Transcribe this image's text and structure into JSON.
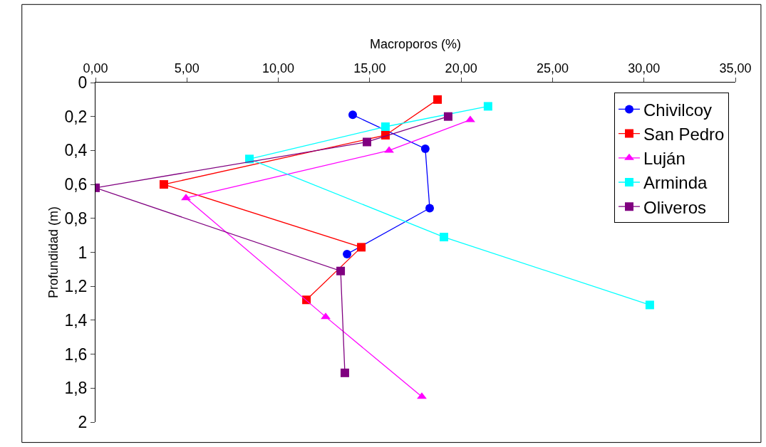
{
  "chart_data": {
    "type": "line",
    "xlabel": "Macroporos (%)",
    "ylabel": "Profundidad (m)",
    "xlim": [
      0,
      35
    ],
    "ylim": [
      2,
      0
    ],
    "xticks": [
      {
        "value": 0,
        "label": "0,00"
      },
      {
        "value": 5,
        "label": "5,00"
      },
      {
        "value": 10,
        "label": "10,00"
      },
      {
        "value": 15,
        "label": "15,00"
      },
      {
        "value": 20,
        "label": "20,00"
      },
      {
        "value": 25,
        "label": "25,00"
      },
      {
        "value": 30,
        "label": "30,00"
      },
      {
        "value": 35,
        "label": "35,00"
      }
    ],
    "yticks": [
      0,
      {
        "value": 0.2,
        "label": "0,2"
      },
      {
        "value": 0.4,
        "label": "0,4"
      },
      {
        "value": 0.6,
        "label": "0,6"
      },
      {
        "value": 0.8,
        "label": "0,8"
      },
      1,
      {
        "value": 1.2,
        "label": "1,2"
      },
      {
        "value": 1.4,
        "label": "1,4"
      },
      {
        "value": 1.6,
        "label": "1,6"
      },
      {
        "value": 1.8,
        "label": "1,8"
      },
      2
    ],
    "grid": false,
    "legend": "top right",
    "line_style": "solid",
    "series": [
      {
        "name": "Chivilcoy",
        "color": "#0000ff",
        "marker": "circle",
        "x": [
          14.07,
          18.04,
          18.28,
          13.76
        ],
        "values": [
          0.19,
          0.39,
          0.74,
          1.01
        ]
      },
      {
        "name": "San Pedro",
        "color": "#ff0000",
        "marker": "square",
        "x": [
          18.71,
          15.86,
          3.74,
          14.54,
          11.54
        ],
        "values": [
          0.1,
          0.31,
          0.6,
          0.97,
          1.28
        ]
      },
      {
        "name": "Luján",
        "color": "#ff00ff",
        "marker": "triangle",
        "x": [
          20.5,
          16.06,
          4.95,
          12.59,
          17.85
        ],
        "values": [
          0.22,
          0.4,
          0.68,
          1.38,
          1.85
        ]
      },
      {
        "name": "Arminda",
        "color": "#00ffff",
        "marker": "square",
        "x": [
          21.47,
          15.86,
          8.42,
          19.06,
          30.32
        ],
        "values": [
          0.14,
          0.26,
          0.45,
          0.91,
          1.31
        ]
      },
      {
        "name": "Oliveros",
        "color": "#800080",
        "marker": "square",
        "x": [
          19.29,
          14.85,
          0.0,
          13.41,
          13.64
        ],
        "values": [
          0.2,
          0.35,
          0.62,
          1.11,
          1.71
        ]
      }
    ]
  }
}
